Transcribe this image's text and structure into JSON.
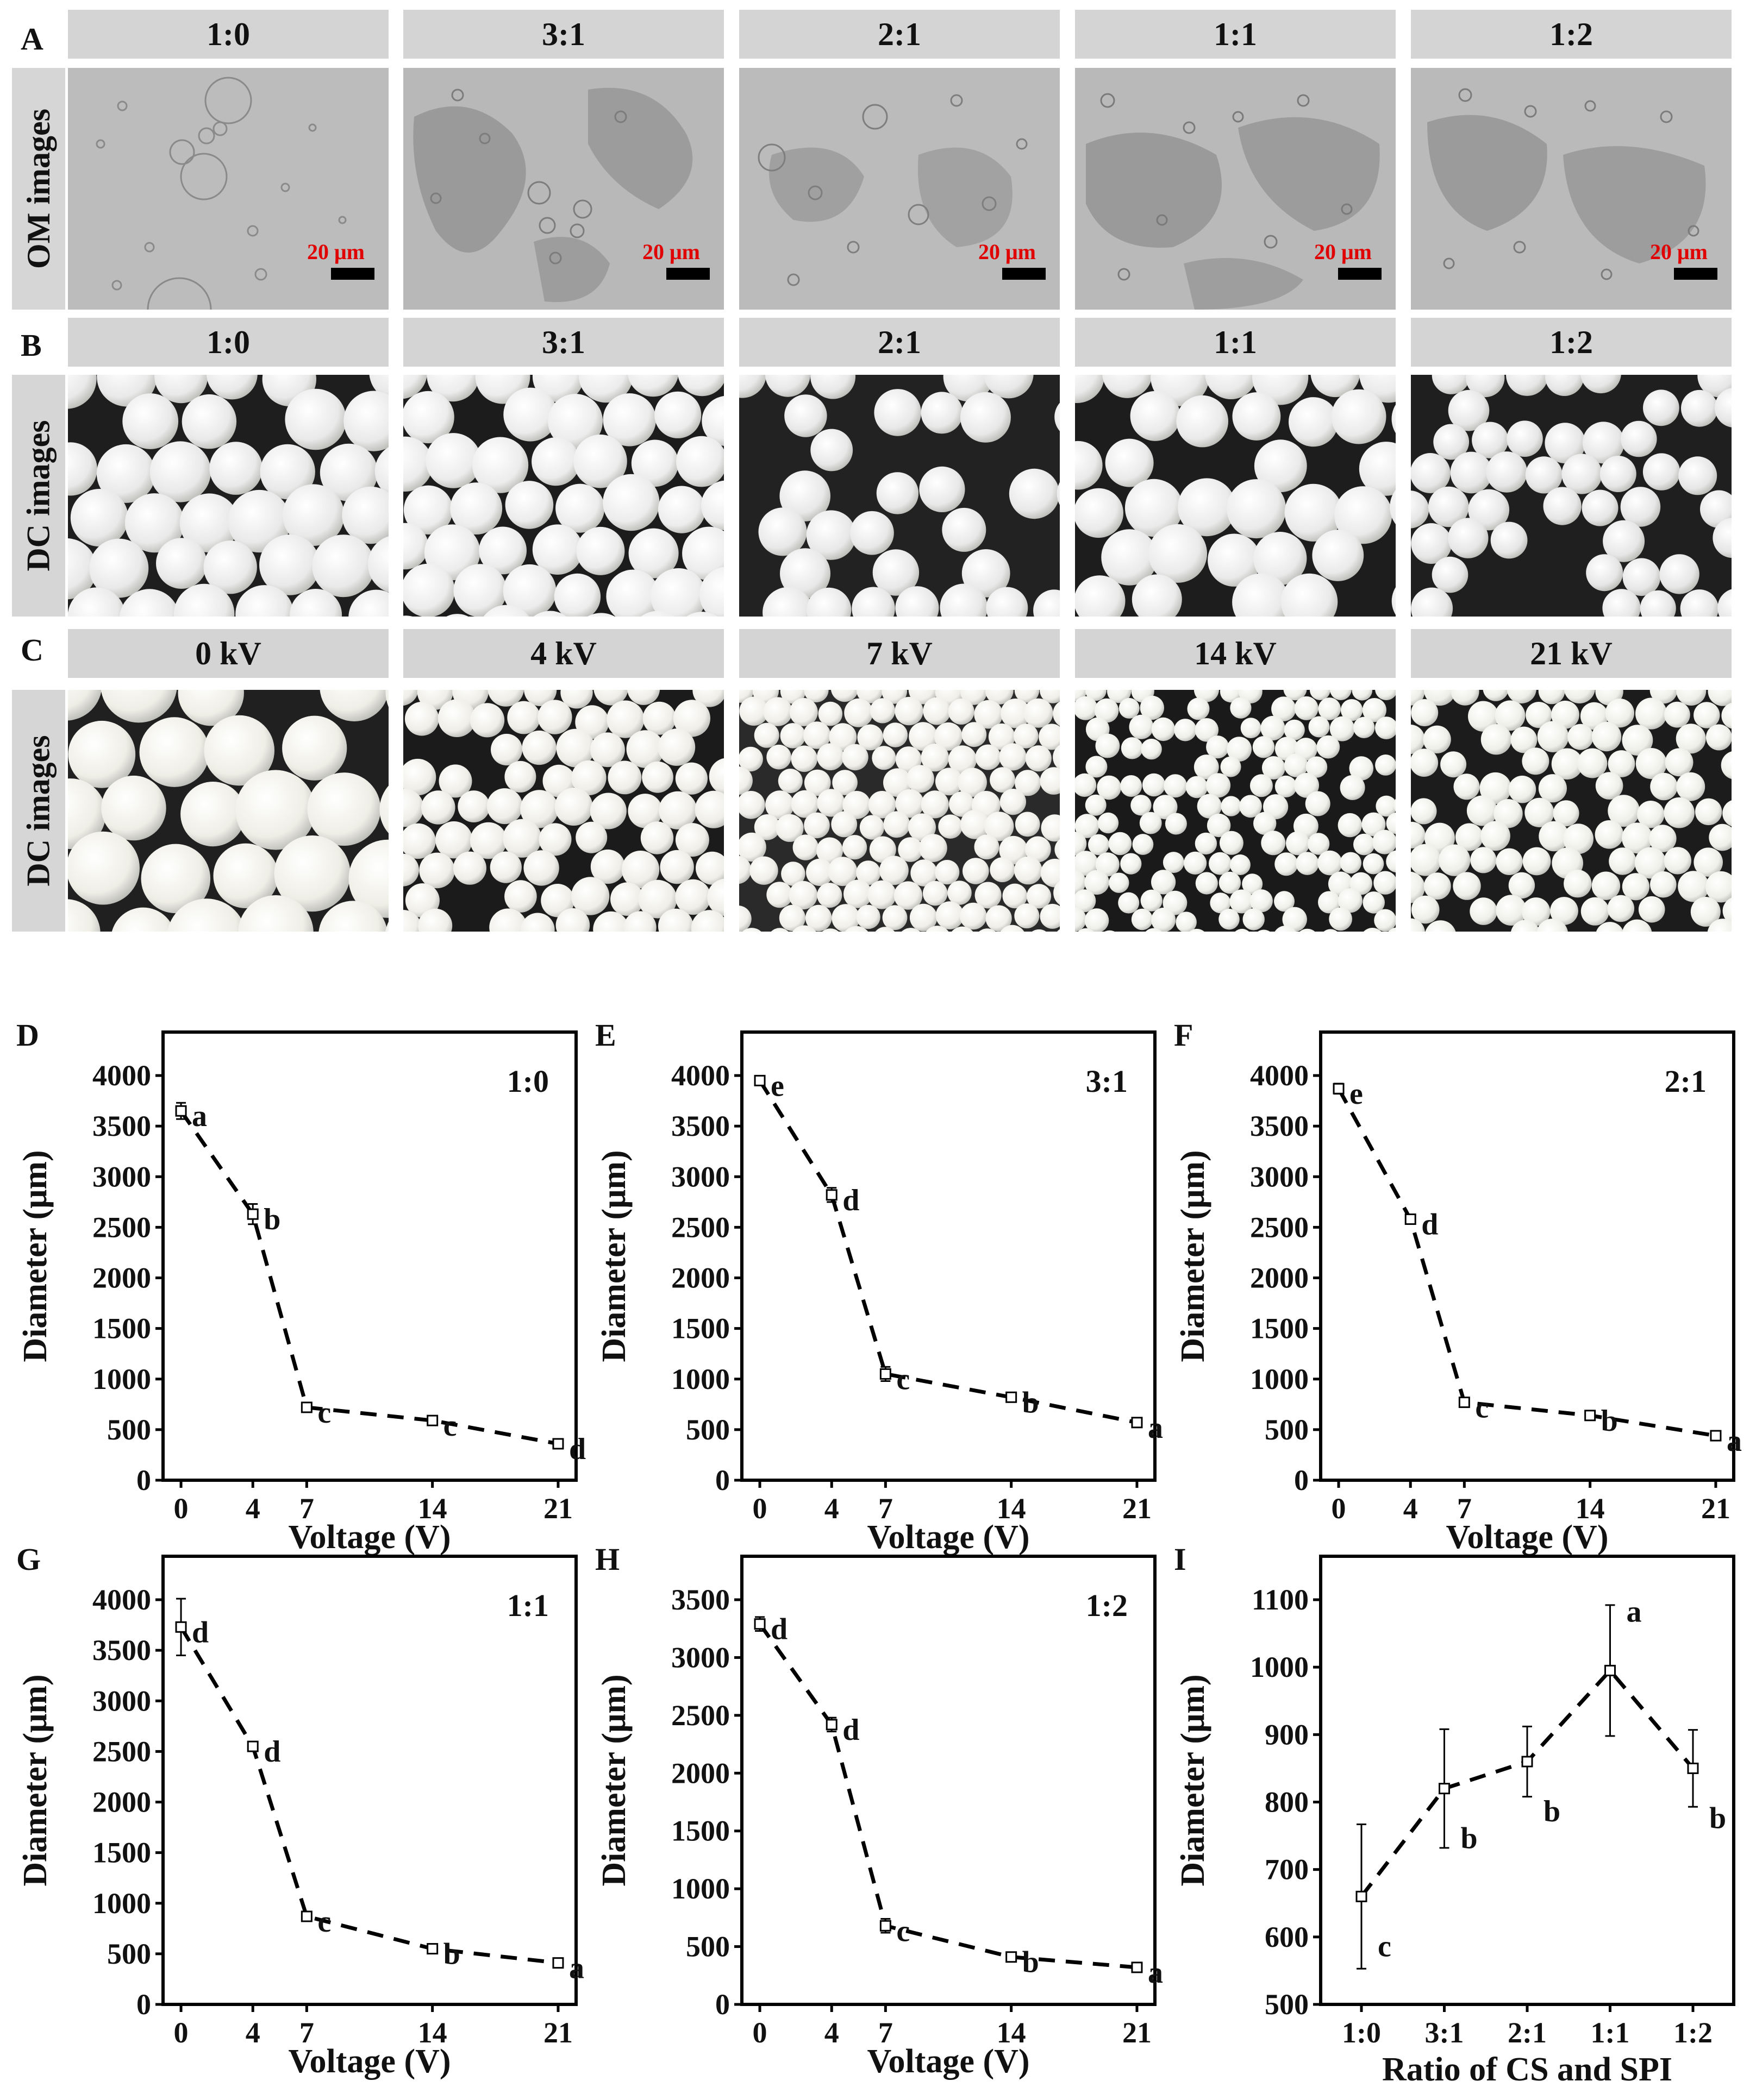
{
  "row_a": {
    "label": "A",
    "side_label": "OM images",
    "headers": [
      "1:0",
      "3:1",
      "2:1",
      "1:1",
      "1:2"
    ],
    "scale_bar_text": "20 μm",
    "scale_bar_color": "#e00000"
  },
  "row_b": {
    "label": "B",
    "side_label": "DC images",
    "headers": [
      "1:0",
      "3:1",
      "2:1",
      "1:1",
      "1:2"
    ]
  },
  "row_c": {
    "label": "C",
    "side_label": "DC images",
    "headers": [
      "0 kV",
      "4 kV",
      "7 kV",
      "14 kV",
      "21 kV"
    ]
  },
  "chart_data": [
    {
      "panel": "D",
      "type": "line",
      "annotation": "1:0",
      "xlabel": "Voltage (V)",
      "ylabel": "Diameter (μm)",
      "xticks": [
        0,
        4,
        7,
        14,
        21
      ],
      "xlim": [
        -1,
        22
      ],
      "ylim": [
        0,
        4000
      ],
      "yticks": [
        0,
        500,
        1000,
        1500,
        2000,
        2500,
        3000,
        3500,
        4000
      ],
      "x": [
        0,
        4,
        7,
        14,
        21
      ],
      "y": [
        3650,
        2630,
        720,
        590,
        360
      ],
      "err": [
        80,
        100,
        25,
        25,
        40
      ],
      "letters": [
        "a",
        "b",
        "c",
        "c",
        "d"
      ]
    },
    {
      "panel": "E",
      "type": "line",
      "annotation": "3:1",
      "xlabel": "Voltage (V)",
      "ylabel": "Diameter (μm)",
      "xticks": [
        0,
        4,
        7,
        14,
        21
      ],
      "xlim": [
        -1,
        22
      ],
      "ylim": [
        0,
        4000
      ],
      "yticks": [
        0,
        500,
        1000,
        1500,
        2000,
        2500,
        3000,
        3500,
        4000
      ],
      "x": [
        0,
        4,
        7,
        14,
        21
      ],
      "y": [
        3950,
        2820,
        1050,
        820,
        570
      ],
      "err": [
        40,
        70,
        70,
        30,
        30
      ],
      "letters": [
        "e",
        "d",
        "c",
        "b",
        "a"
      ]
    },
    {
      "panel": "F",
      "type": "line",
      "annotation": "2:1",
      "xlabel": "Voltage (V)",
      "ylabel": "Diameter (μm)",
      "xticks": [
        0,
        4,
        7,
        14,
        21
      ],
      "xlim": [
        -1,
        22
      ],
      "ylim": [
        0,
        4000
      ],
      "yticks": [
        0,
        500,
        1000,
        1500,
        2000,
        2500,
        3000,
        3500,
        4000
      ],
      "x": [
        0,
        4,
        7,
        14,
        21
      ],
      "y": [
        3870,
        2580,
        770,
        640,
        440
      ],
      "err": [
        50,
        40,
        30,
        25,
        40
      ],
      "letters": [
        "e",
        "d",
        "c",
        "b",
        "a"
      ]
    },
    {
      "panel": "G",
      "type": "line",
      "annotation": "1:1",
      "xlabel": "Voltage (V)",
      "ylabel": "Diameter (μm)",
      "xticks": [
        0,
        4,
        7,
        14,
        21
      ],
      "xlim": [
        -1,
        22
      ],
      "ylim": [
        0,
        4000
      ],
      "yticks": [
        0,
        500,
        1000,
        1500,
        2000,
        2500,
        3000,
        3500,
        4000
      ],
      "x": [
        0,
        4,
        7,
        14,
        21
      ],
      "y": [
        3730,
        2550,
        870,
        550,
        410
      ],
      "err": [
        280,
        40,
        25,
        25,
        25
      ],
      "letters": [
        "d",
        "d",
        "c",
        "b",
        "a"
      ]
    },
    {
      "panel": "H",
      "type": "line",
      "annotation": "1:2",
      "xlabel": "Voltage (V)",
      "ylabel": "Diameter (μm)",
      "xticks": [
        0,
        4,
        7,
        14,
        21
      ],
      "xlim": [
        -1,
        22
      ],
      "ylim": [
        0,
        3500
      ],
      "yticks": [
        0,
        500,
        1000,
        1500,
        2000,
        2500,
        3000,
        3500
      ],
      "x": [
        0,
        4,
        7,
        14,
        21
      ],
      "y": [
        3290,
        2420,
        680,
        410,
        320
      ],
      "err": [
        60,
        60,
        60,
        25,
        25
      ],
      "letters": [
        "d",
        "d",
        "c",
        "b",
        "a"
      ]
    },
    {
      "panel": "I",
      "type": "line",
      "annotation": "",
      "xlabel": "Ratio of CS and SPI",
      "ylabel": "Diameter (μm)",
      "categories": [
        "1:0",
        "3:1",
        "2:1",
        "1:1",
        "1:2"
      ],
      "ylim": [
        500,
        1100
      ],
      "yticks": [
        500,
        600,
        700,
        800,
        900,
        1000,
        1100
      ],
      "y": [
        660,
        820,
        860,
        995,
        850
      ],
      "err": [
        107,
        88,
        52,
        97,
        57
      ],
      "letters": [
        "c",
        "b",
        "b",
        "a",
        "b"
      ]
    }
  ]
}
